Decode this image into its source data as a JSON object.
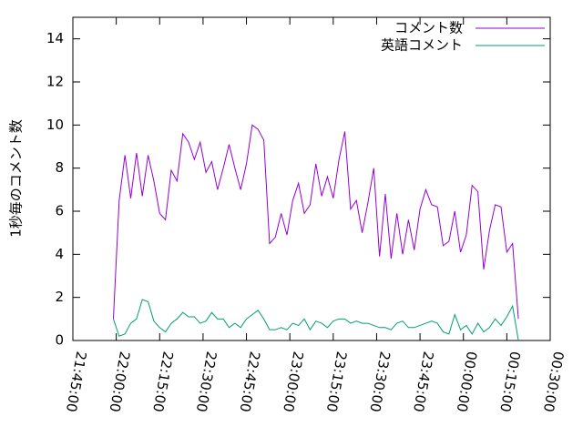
{
  "chart_data": {
    "type": "line",
    "ylabel": "1秒毎のコメント数",
    "x": [
      "21:59:00",
      "22:01:00",
      "22:03:00",
      "22:05:00",
      "22:07:00",
      "22:09:00",
      "22:11:00",
      "22:13:00",
      "22:15:00",
      "22:17:00",
      "22:19:00",
      "22:21:00",
      "22:23:00",
      "22:25:00",
      "22:27:00",
      "22:29:00",
      "22:31:00",
      "22:33:00",
      "22:35:00",
      "22:37:00",
      "22:39:00",
      "22:41:00",
      "22:43:00",
      "22:45:00",
      "22:47:00",
      "22:49:00",
      "22:51:00",
      "22:53:00",
      "22:55:00",
      "22:57:00",
      "22:59:00",
      "23:01:00",
      "23:03:00",
      "23:05:00",
      "23:07:00",
      "23:09:00",
      "23:11:00",
      "23:13:00",
      "23:15:00",
      "23:17:00",
      "23:19:00",
      "23:21:00",
      "23:23:00",
      "23:25:00",
      "23:27:00",
      "23:29:00",
      "23:31:00",
      "23:33:00",
      "23:35:00",
      "23:37:00",
      "23:39:00",
      "23:41:00",
      "23:43:00",
      "23:45:00",
      "23:47:00",
      "23:49:00",
      "23:51:00",
      "23:53:00",
      "23:55:00",
      "23:57:00",
      "23:59:00",
      "00:01:00",
      "00:03:00",
      "00:05:00",
      "00:07:00",
      "00:09:00",
      "00:11:00",
      "00:13:00",
      "00:15:00",
      "00:17:00",
      "00:19:00"
    ],
    "series": [
      {
        "name": "コメント数",
        "color": "#9400d3",
        "values": [
          1.0,
          6.5,
          8.6,
          6.6,
          8.7,
          6.7,
          8.6,
          7.4,
          5.9,
          5.6,
          7.9,
          7.4,
          9.6,
          9.2,
          8.4,
          9.2,
          7.8,
          8.3,
          7.0,
          8.0,
          9.1,
          8.0,
          7.0,
          8.2,
          10.0,
          9.8,
          9.3,
          4.5,
          4.8,
          5.9,
          4.9,
          6.5,
          7.3,
          5.9,
          6.3,
          8.2,
          6.7,
          7.6,
          6.6,
          8.4,
          9.7,
          6.1,
          6.5,
          5.0,
          6.4,
          8.0,
          3.9,
          6.8,
          3.8,
          5.9,
          4.0,
          5.6,
          4.2,
          6.1,
          7.0,
          6.3,
          6.2,
          4.4,
          4.6,
          6.0,
          4.1,
          4.9,
          7.2,
          6.9,
          3.3,
          5.1,
          6.3,
          6.2,
          4.1,
          4.5,
          1.0
        ]
      },
      {
        "name": "英語コメント",
        "color": "#009e73",
        "values": [
          1.0,
          0.2,
          0.3,
          0.8,
          1.0,
          1.9,
          1.8,
          0.9,
          0.6,
          0.4,
          0.8,
          1.0,
          1.3,
          1.1,
          1.1,
          0.8,
          0.9,
          1.3,
          1.0,
          1.0,
          0.6,
          0.8,
          0.6,
          1.0,
          1.2,
          1.4,
          1.0,
          0.5,
          0.5,
          0.6,
          0.5,
          0.8,
          0.7,
          1.0,
          0.5,
          0.9,
          0.8,
          0.6,
          0.9,
          1.0,
          1.0,
          0.8,
          0.9,
          0.8,
          0.8,
          0.7,
          0.6,
          0.6,
          0.5,
          0.8,
          0.9,
          0.6,
          0.6,
          0.7,
          0.8,
          0.9,
          0.8,
          0.4,
          0.3,
          1.2,
          0.5,
          0.7,
          0.3,
          0.8,
          0.4,
          0.6,
          1.0,
          0.7,
          1.1,
          1.6,
          0.0
        ]
      }
    ],
    "xlim": [
      "21:45:00",
      "00:30:00"
    ],
    "xticks": [
      "21:45:00",
      "22:00:00",
      "22:15:00",
      "22:30:00",
      "22:45:00",
      "23:00:00",
      "23:15:00",
      "23:30:00",
      "23:45:00",
      "00:00:00",
      "00:15:00",
      "00:30:00"
    ],
    "ylim": [
      0,
      15
    ],
    "yticks": [
      0,
      2,
      4,
      6,
      8,
      10,
      12,
      14
    ],
    "legend": "top-right",
    "grid": false
  }
}
